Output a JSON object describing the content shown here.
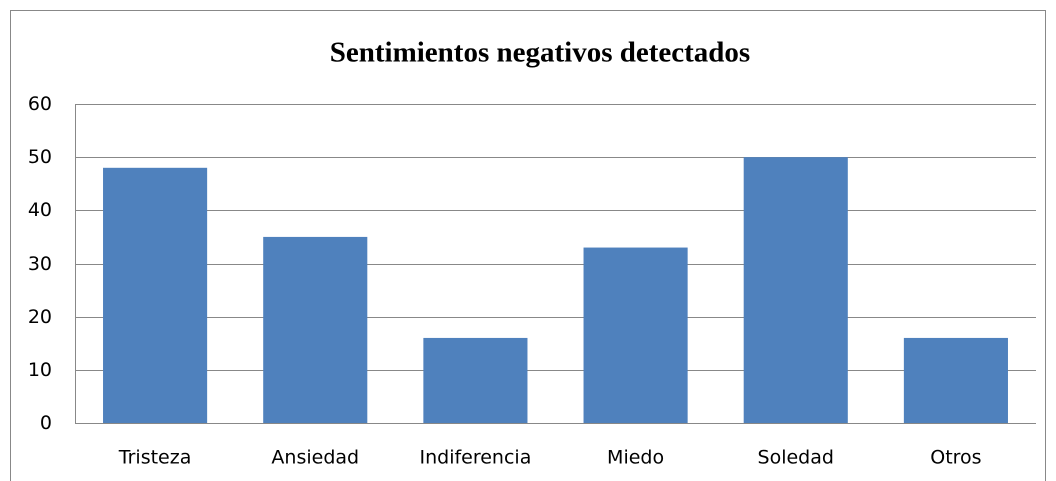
{
  "chart_data": {
    "type": "bar",
    "title": "Sentimientos negativos detectados",
    "categories": [
      "Tristeza",
      "Ansiedad",
      "Indiferencia",
      "Miedo",
      "Soledad",
      "Otros"
    ],
    "values": [
      48,
      35,
      16,
      33,
      50,
      16
    ],
    "color": "#4f81bd",
    "ylim": [
      0,
      60
    ],
    "yticks": [
      0,
      10,
      20,
      30,
      40,
      50,
      60
    ],
    "grid": true
  }
}
